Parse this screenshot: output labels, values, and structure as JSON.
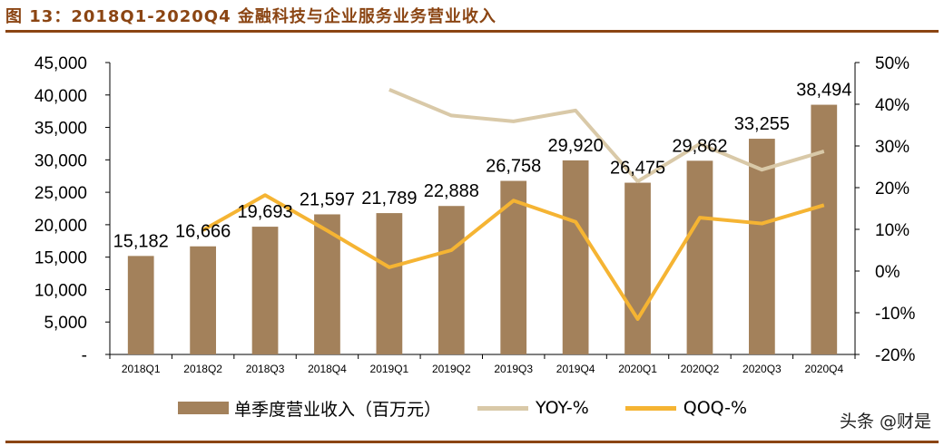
{
  "title": "图 13：2018Q1-2020Q4 金融科技与企业服务业务营业收入",
  "watermark": "头条 @财是",
  "colors": {
    "bar": "#A3815B",
    "yoy": "#D9C9A8",
    "qoq": "#F5B433",
    "title": "#8B4513"
  },
  "legend": {
    "bar_label": "单季度营业收入（百万元）",
    "yoy_label": "YOY-%",
    "qoq_label": "QOQ-%"
  },
  "chart_data": {
    "type": "bar",
    "categories": [
      "2018Q1",
      "2018Q2",
      "2018Q3",
      "2018Q4",
      "2019Q1",
      "2019Q2",
      "2019Q3",
      "2019Q4",
      "2020Q1",
      "2020Q2",
      "2020Q3",
      "2020Q4"
    ],
    "series": [
      {
        "name": "单季度营业收入（百万元）",
        "type": "bar",
        "axis": "left",
        "values": [
          15182,
          16666,
          19693,
          21597,
          21789,
          22888,
          26758,
          29920,
          26475,
          29862,
          33255,
          38494
        ],
        "labels": [
          "15,182",
          "16,666",
          "19,693",
          "21,597",
          "21,789",
          "22,888",
          "26,758",
          "29,920",
          "26,475",
          "29,862",
          "33,255",
          "38,494"
        ]
      },
      {
        "name": "YOY-%",
        "type": "line",
        "axis": "right",
        "values": [
          null,
          null,
          null,
          null,
          43.5,
          37.3,
          35.9,
          38.5,
          21.5,
          30.5,
          24.3,
          28.7
        ]
      },
      {
        "name": "QOQ-%",
        "type": "line",
        "axis": "right",
        "values": [
          null,
          9.8,
          18.2,
          9.7,
          0.9,
          5.0,
          16.9,
          11.8,
          -11.5,
          12.8,
          11.4,
          15.8
        ]
      }
    ],
    "y_left": {
      "min": 0,
      "max": 45000,
      "ticks": [
        "-",
        "5,000",
        "10,000",
        "15,000",
        "20,000",
        "25,000",
        "30,000",
        "35,000",
        "40,000",
        "45,000"
      ]
    },
    "y_right": {
      "min": -20,
      "max": 50,
      "ticks": [
        "-20%",
        "-10%",
        "0%",
        "10%",
        "20%",
        "30%",
        "40%",
        "50%"
      ]
    },
    "grid": false,
    "legend_position": "bottom"
  }
}
